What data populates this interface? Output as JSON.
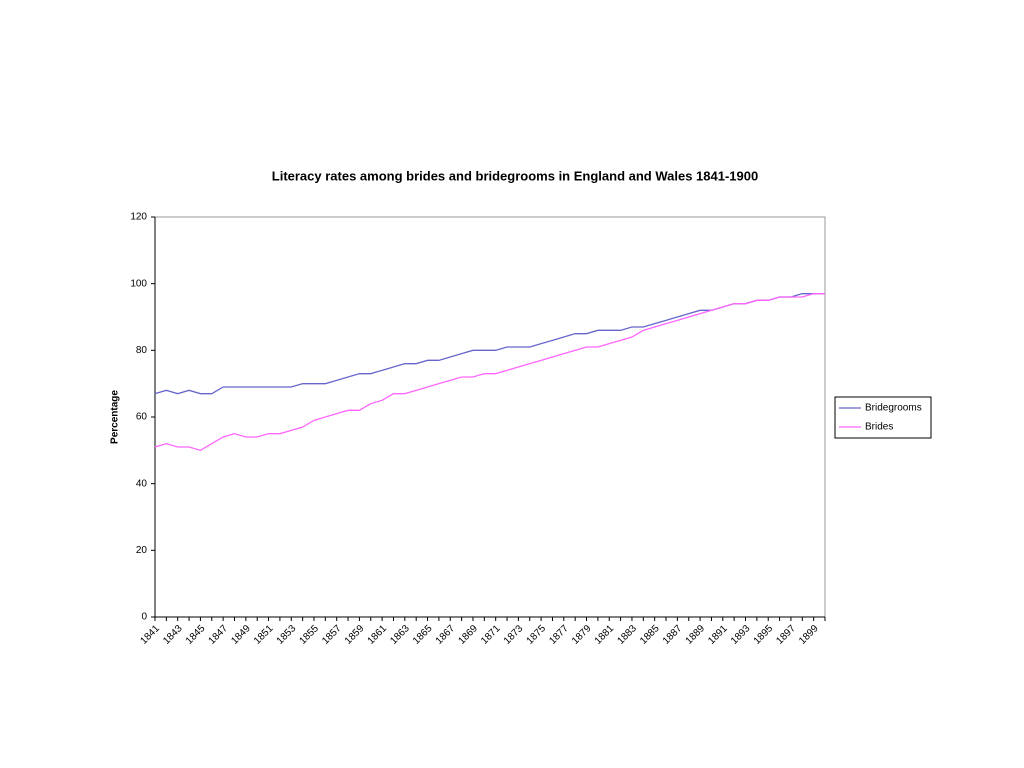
{
  "chart_data": {
    "type": "line",
    "title": "Literacy rates among brides and bridegrooms in England and Wales 1841-1900",
    "y_label": "Percentage",
    "categories": [
      "1841",
      null,
      "1843",
      null,
      "1845",
      null,
      "1847",
      null,
      "1849",
      null,
      "1851",
      null,
      "1853",
      null,
      "1855",
      null,
      "1857",
      null,
      "1859",
      null,
      "1861",
      null,
      "1863",
      null,
      "1865",
      null,
      "1867",
      null,
      "1869",
      null,
      "1871",
      null,
      "1873",
      null,
      "1875",
      null,
      "1877",
      null,
      "1879",
      null,
      "1881",
      null,
      "1883",
      null,
      "1885",
      null,
      "1887",
      null,
      "1889",
      null,
      "1891",
      null,
      "1893",
      null,
      "1895",
      null,
      "1897",
      null,
      "1899",
      null
    ],
    "series": [
      {
        "name": "Bridegrooms",
        "color": "#6666cc",
        "values": [
          67,
          68,
          67,
          68,
          67,
          67,
          69,
          69,
          69,
          69,
          69,
          69,
          69,
          70,
          70,
          70,
          71,
          72,
          73,
          73,
          74,
          75,
          76,
          76,
          77,
          77,
          78,
          79,
          80,
          80,
          80,
          81,
          81,
          81,
          82,
          83,
          84,
          85,
          85,
          86,
          86,
          86,
          87,
          87,
          88,
          89,
          90,
          91,
          92,
          92,
          93,
          94,
          94,
          95,
          95,
          96,
          96,
          97,
          97,
          97
        ]
      },
      {
        "name": "Brides",
        "color": "#ff66ff",
        "values": [
          51,
          52,
          51,
          51,
          50,
          52,
          54,
          55,
          54,
          54,
          55,
          55,
          56,
          57,
          59,
          60,
          61,
          62,
          62,
          64,
          65,
          67,
          67,
          68,
          69,
          70,
          71,
          72,
          72,
          73,
          73,
          74,
          75,
          76,
          77,
          78,
          79,
          80,
          81,
          81,
          82,
          83,
          84,
          86,
          87,
          88,
          89,
          90,
          91,
          92,
          93,
          94,
          94,
          95,
          95,
          96,
          96,
          96,
          97,
          97
        ]
      }
    ],
    "ylim": [
      0,
      120
    ],
    "yticks": [
      0,
      20,
      40,
      60,
      80,
      100,
      120
    ],
    "grid": false,
    "legend": "right"
  }
}
